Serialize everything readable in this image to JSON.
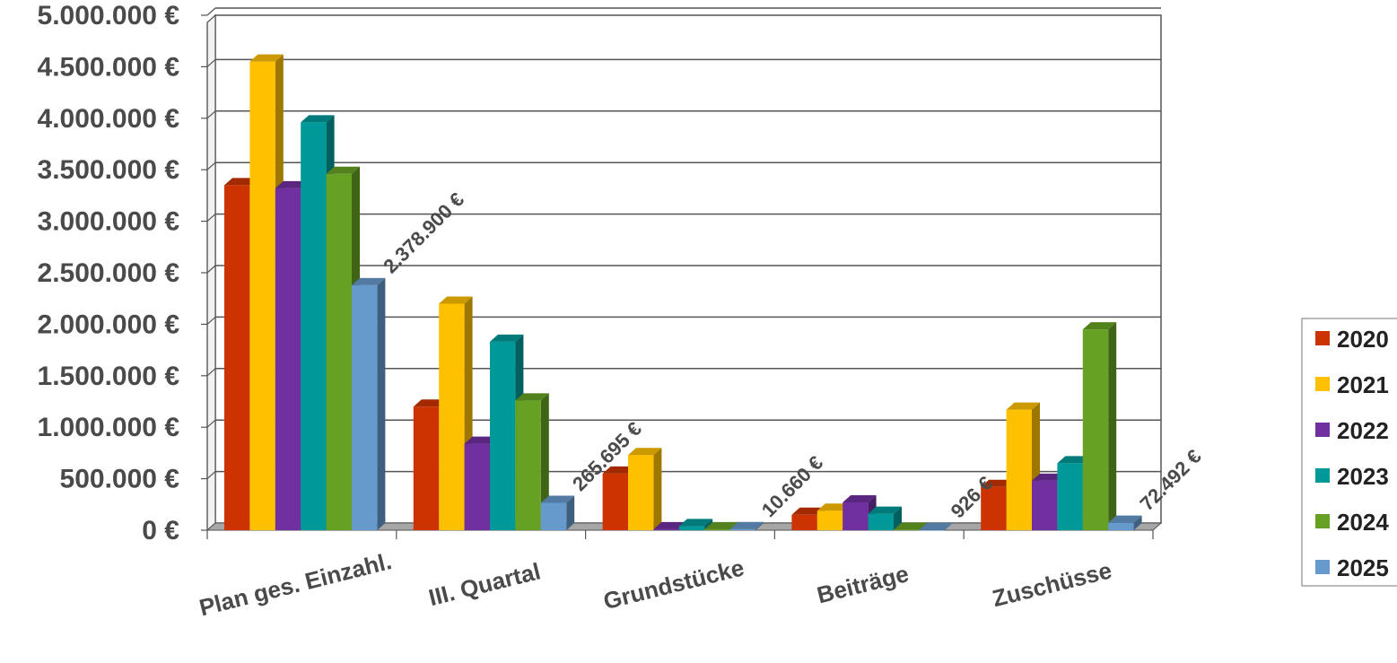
{
  "chart_data": {
    "type": "bar",
    "title": "",
    "xlabel": "",
    "ylabel": "",
    "ylim": [
      0,
      5000000
    ],
    "y_ticks": [
      "0 €",
      "500.000 €",
      "1.000.000 €",
      "1.500.000 €",
      "2.000.000 €",
      "2.500.000 €",
      "3.000.000 €",
      "3.500.000 €",
      "4.000.000 €",
      "4.500.000 €",
      "5.000.000 €"
    ],
    "grid": true,
    "three_d": true,
    "legend_position": "right",
    "categories": [
      "Plan ges. Einzahl.",
      "III. Quartal",
      "Grundstücke",
      "Beiträge",
      "Zuschüsse"
    ],
    "series": [
      {
        "name": "2020",
        "color": "#cc3300",
        "values": [
          3350000,
          1200000,
          550000,
          150000,
          420000
        ]
      },
      {
        "name": "2021",
        "color": "#ffc000",
        "values": [
          4550000,
          2200000,
          730000,
          190000,
          1170000
        ]
      },
      {
        "name": "2022",
        "color": "#7030a0",
        "values": [
          3320000,
          840000,
          10000,
          270000,
          480000
        ]
      },
      {
        "name": "2023",
        "color": "#009999",
        "values": [
          3960000,
          1830000,
          40000,
          160000,
          650000
        ]
      },
      {
        "name": "2024",
        "color": "#66a124",
        "values": [
          3460000,
          1260000,
          10000,
          5000,
          1950000
        ]
      },
      {
        "name": "2025",
        "color": "#6699cc",
        "values": [
          2378900,
          265695,
          10660,
          926,
          72492
        ]
      }
    ],
    "data_labels": [
      {
        "series": "2025",
        "category": "Plan ges. Einzahl.",
        "text": "2.378.900 €"
      },
      {
        "series": "2025",
        "category": "III. Quartal",
        "text": "265.695 €"
      },
      {
        "series": "2025",
        "category": "Grundstücke",
        "text": "10.660 €"
      },
      {
        "series": "2025",
        "category": "Beiträge",
        "text": "926 €"
      },
      {
        "series": "2025",
        "category": "Zuschüsse",
        "text": "72.492 €"
      }
    ]
  }
}
